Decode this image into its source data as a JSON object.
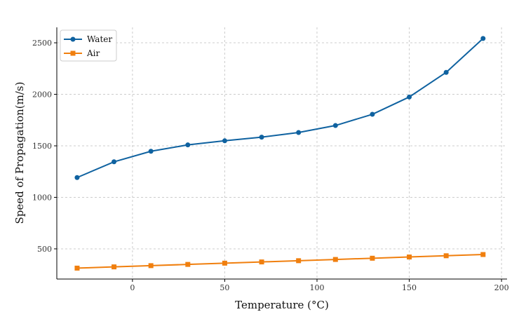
{
  "chart_data": {
    "type": "line",
    "title": "",
    "xlabel": "Temperature (°C)",
    "ylabel": "Speed of Propagation(m/s)",
    "xlim": [
      -41,
      203
    ],
    "ylim": [
      207,
      2650
    ],
    "xticks": [
      0,
      50,
      100,
      150,
      200
    ],
    "yticks": [
      500,
      1000,
      1500,
      2000,
      2500
    ],
    "grid": true,
    "legend_position": "top-left",
    "x": [
      -30,
      -10,
      10,
      30,
      50,
      70,
      90,
      110,
      130,
      150,
      170,
      190
    ],
    "series": [
      {
        "name": "Water",
        "color": "#0f62a0",
        "marker": "circle",
        "values": [
          1192,
          1345,
          1447,
          1509,
          1549,
          1584,
          1629,
          1697,
          1806,
          1974,
          2213,
          2542
        ]
      },
      {
        "name": "Air",
        "color": "#f07f0e",
        "marker": "square",
        "values": [
          313,
          325,
          337,
          349,
          361,
          373,
          385,
          397,
          409,
          421,
          433,
          445
        ]
      }
    ]
  }
}
